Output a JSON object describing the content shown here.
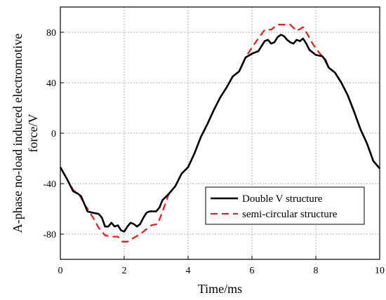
{
  "chart_data": {
    "type": "line",
    "xlabel": "Time/ms",
    "ylabel": "A-phase no-load induced electromotive force/V",
    "xlim": [
      0,
      10
    ],
    "ylim": [
      -100,
      100
    ],
    "xticks": [
      0,
      2,
      4,
      6,
      8,
      10
    ],
    "yticks": [
      -80,
      -40,
      0,
      40,
      80
    ],
    "grid": true,
    "legend_position": "lower-right",
    "series": [
      {
        "name": "Double V structure",
        "color": "#000000",
        "style": "solid",
        "points": [
          [
            0,
            -27
          ],
          [
            0.2,
            -36
          ],
          [
            0.4,
            -46
          ],
          [
            0.55,
            -48
          ],
          [
            0.65,
            -50
          ],
          [
            0.75,
            -56
          ],
          [
            0.85,
            -62
          ],
          [
            1.0,
            -63
          ],
          [
            1.2,
            -64
          ],
          [
            1.3,
            -67
          ],
          [
            1.4,
            -74
          ],
          [
            1.5,
            -74
          ],
          [
            1.6,
            -71
          ],
          [
            1.7,
            -74
          ],
          [
            1.8,
            -73
          ],
          [
            1.9,
            -77
          ],
          [
            2.0,
            -78
          ],
          [
            2.1,
            -74
          ],
          [
            2.2,
            -71
          ],
          [
            2.3,
            -72
          ],
          [
            2.4,
            -74
          ],
          [
            2.5,
            -72
          ],
          [
            2.6,
            -67
          ],
          [
            2.7,
            -63
          ],
          [
            2.8,
            -62
          ],
          [
            3.0,
            -62
          ],
          [
            3.1,
            -59
          ],
          [
            3.2,
            -53
          ],
          [
            3.4,
            -48
          ],
          [
            3.6,
            -42
          ],
          [
            3.8,
            -32
          ],
          [
            4.0,
            -27
          ],
          [
            4.2,
            -16
          ],
          [
            4.4,
            -3
          ],
          [
            4.6,
            7
          ],
          [
            4.8,
            18
          ],
          [
            5.0,
            28
          ],
          [
            5.2,
            36
          ],
          [
            5.4,
            45
          ],
          [
            5.6,
            49
          ],
          [
            5.8,
            60
          ],
          [
            6.0,
            63
          ],
          [
            6.2,
            65
          ],
          [
            6.4,
            73
          ],
          [
            6.5,
            74
          ],
          [
            6.6,
            71
          ],
          [
            6.7,
            72
          ],
          [
            6.8,
            76
          ],
          [
            6.9,
            78
          ],
          [
            7.0,
            77
          ],
          [
            7.1,
            74
          ],
          [
            7.2,
            72
          ],
          [
            7.3,
            71
          ],
          [
            7.4,
            74
          ],
          [
            7.5,
            73
          ],
          [
            7.6,
            75
          ],
          [
            7.7,
            71
          ],
          [
            7.8,
            66
          ],
          [
            8.0,
            62
          ],
          [
            8.2,
            61
          ],
          [
            8.3,
            58
          ],
          [
            8.4,
            52
          ],
          [
            8.6,
            48
          ],
          [
            8.8,
            40
          ],
          [
            9.0,
            30
          ],
          [
            9.2,
            17
          ],
          [
            9.4,
            3
          ],
          [
            9.6,
            -8
          ],
          [
            9.8,
            -22
          ],
          [
            10.0,
            -28
          ]
        ]
      },
      {
        "name": "semi-circular structure",
        "color": "#e8201f",
        "style": "dashed",
        "points": [
          [
            0,
            -27
          ],
          [
            0.2,
            -36
          ],
          [
            0.4,
            -45
          ],
          [
            0.6,
            -49
          ],
          [
            0.75,
            -56
          ],
          [
            0.9,
            -62
          ],
          [
            1.05,
            -68
          ],
          [
            1.2,
            -75
          ],
          [
            1.4,
            -81
          ],
          [
            1.6,
            -82
          ],
          [
            1.8,
            -82
          ],
          [
            1.95,
            -86
          ],
          [
            2.1,
            -86
          ],
          [
            2.3,
            -83
          ],
          [
            2.5,
            -80
          ],
          [
            2.7,
            -76
          ],
          [
            2.85,
            -73
          ],
          [
            3.05,
            -72
          ],
          [
            3.2,
            -62
          ],
          [
            3.4,
            -48
          ],
          [
            3.6,
            -42
          ],
          [
            3.8,
            -32
          ],
          [
            4.0,
            -27
          ],
          [
            4.2,
            -16
          ],
          [
            4.4,
            -3
          ],
          [
            4.6,
            7
          ],
          [
            4.8,
            18
          ],
          [
            5.0,
            28
          ],
          [
            5.2,
            36
          ],
          [
            5.4,
            45
          ],
          [
            5.6,
            49
          ],
          [
            5.8,
            60
          ],
          [
            6.0,
            68
          ],
          [
            6.2,
            75
          ],
          [
            6.4,
            82
          ],
          [
            6.6,
            82
          ],
          [
            6.8,
            86
          ],
          [
            7.0,
            86
          ],
          [
            7.2,
            86
          ],
          [
            7.4,
            81
          ],
          [
            7.6,
            84
          ],
          [
            7.75,
            78
          ],
          [
            7.85,
            73
          ],
          [
            8.0,
            67
          ],
          [
            8.2,
            61
          ],
          [
            8.3,
            57
          ],
          [
            8.4,
            52
          ],
          [
            8.6,
            48
          ],
          [
            8.8,
            40
          ],
          [
            9.0,
            30
          ],
          [
            9.2,
            17
          ],
          [
            9.4,
            3
          ],
          [
            9.6,
            -8
          ],
          [
            9.8,
            -22
          ],
          [
            10.0,
            -28
          ]
        ]
      }
    ]
  }
}
